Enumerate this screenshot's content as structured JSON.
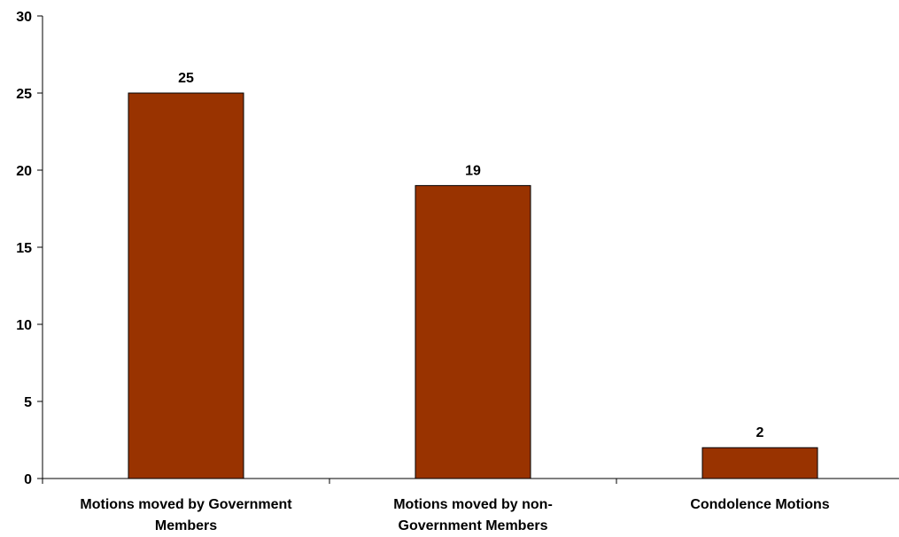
{
  "chart_data": {
    "type": "bar",
    "title": "",
    "xlabel": "",
    "ylabel": "",
    "categories": [
      [
        "Motions moved by Government",
        "Members"
      ],
      [
        "Motions moved by non-",
        "Government Members"
      ],
      [
        "Condolence Motions"
      ]
    ],
    "values": [
      25,
      19,
      2
    ],
    "data_labels": [
      "25",
      "19",
      "2"
    ],
    "ylim": [
      0,
      30
    ],
    "yticks": [
      0,
      5,
      10,
      15,
      20,
      25,
      30
    ],
    "ytick_labels": [
      "0",
      "5",
      "10",
      "15",
      "20",
      "25",
      "30"
    ],
    "grid": false,
    "legend": "none",
    "colors": {
      "bar_fill": "#993300",
      "bar_stroke": "#000000",
      "axis": "#000000"
    }
  }
}
